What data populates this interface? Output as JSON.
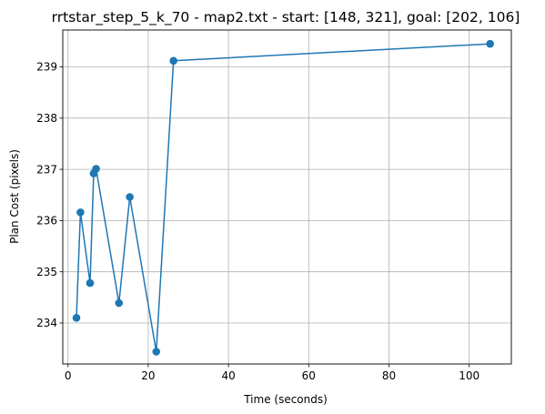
{
  "chart_data": {
    "type": "line",
    "title": "rrtstar_step_5_k_70 - map2.txt - start: [148, 321], goal: [202, 106]",
    "xlabel": "Time (seconds)",
    "ylabel": "Plan Cost (pixels)",
    "xlim": [
      -1.3,
      110.5
    ],
    "ylim": [
      233.2,
      239.72
    ],
    "xticks": [
      0,
      20,
      40,
      60,
      80,
      100
    ],
    "yticks": [
      234,
      235,
      236,
      237,
      238,
      239
    ],
    "grid": true,
    "series": [
      {
        "color": "#1f77b4",
        "marker": "circle",
        "x": [
          2.1,
          3.1,
          5.5,
          6.4,
          7.0,
          12.7,
          15.4,
          22.0,
          26.3,
          105.2
        ],
        "y": [
          234.1,
          236.16,
          234.78,
          236.92,
          237.01,
          234.39,
          236.46,
          233.44,
          239.12,
          239.45
        ]
      }
    ]
  }
}
